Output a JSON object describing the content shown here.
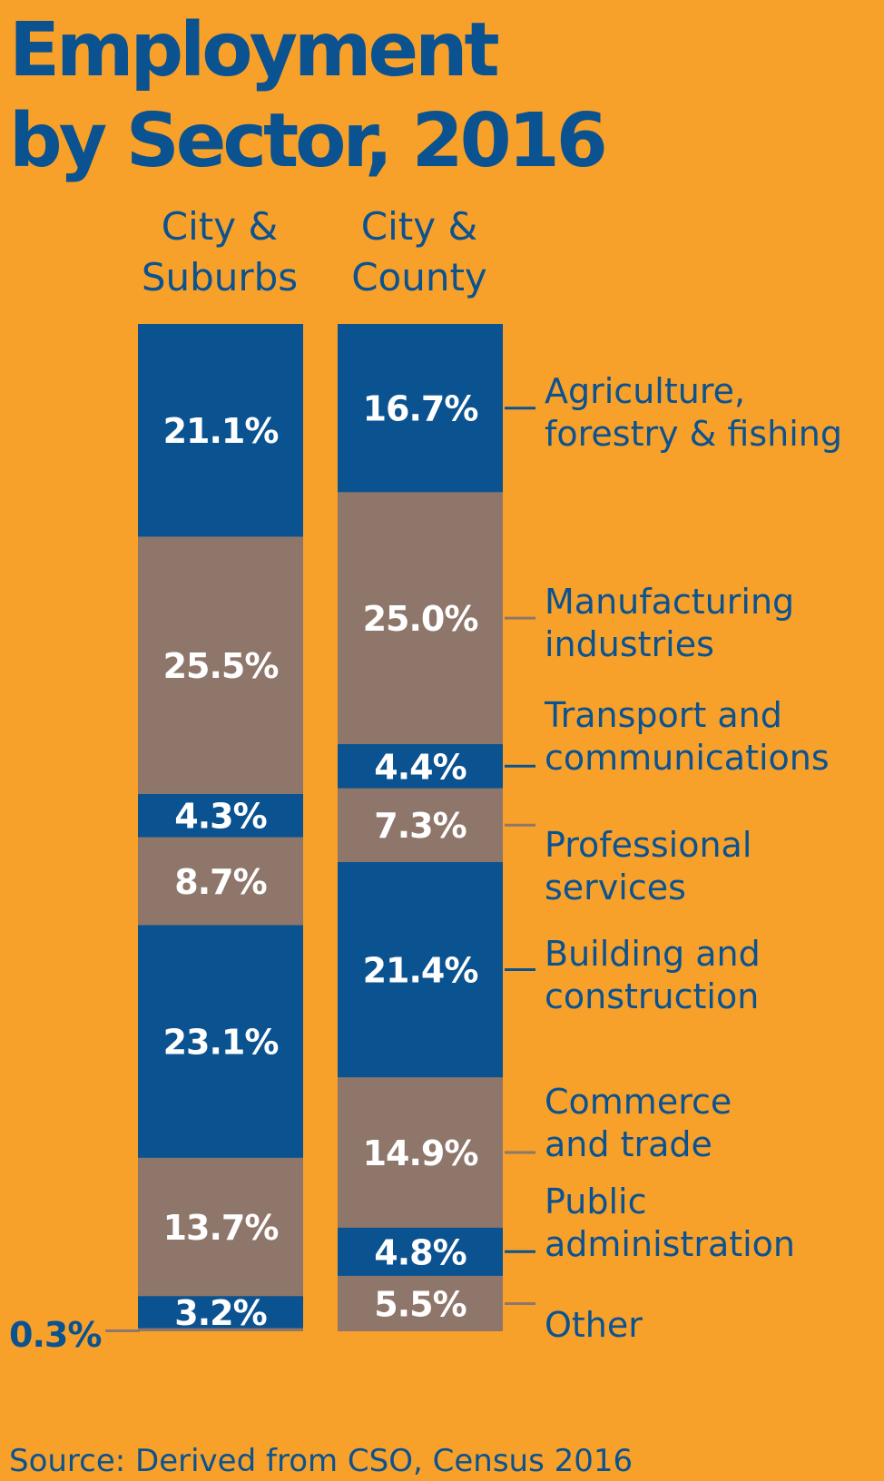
{
  "title_lines": [
    "Employment",
    "by Sector, 2016"
  ],
  "source": "Source: Derived from CSO, Census 2016",
  "colors": {
    "background": "#f7a02a",
    "blue": "#0b5290",
    "taupe": "#8f766b",
    "text": "#0b5290",
    "label": "#ffffff",
    "connector_blue": "#0b5290",
    "connector_taupe": "#8f766b"
  },
  "chart_data": {
    "type": "bar",
    "stacked": true,
    "unit": "%",
    "series": [
      {
        "name_lines": [
          "City &",
          "Suburbs"
        ],
        "values": [
          0.3,
          3.2,
          13.7,
          23.1,
          8.7,
          4.3,
          25.5,
          21.1
        ],
        "labels": [
          "0.3%",
          "3.2%",
          "13.7%",
          "23.1%",
          "8.7%",
          "4.3%",
          "25.5%",
          "21.1%"
        ]
      },
      {
        "name_lines": [
          "City &",
          "County"
        ],
        "values": [
          5.5,
          4.8,
          14.9,
          21.4,
          7.3,
          4.4,
          25.0,
          16.7
        ],
        "labels": [
          "5.5%",
          "4.8%",
          "14.9%",
          "21.4%",
          "7.3%",
          "4.4%",
          "25.0%",
          "16.7%"
        ]
      }
    ],
    "categories": [
      {
        "lines": [
          "Other"
        ],
        "color": "taupe"
      },
      {
        "lines": [
          "Public",
          "administration"
        ],
        "color": "blue"
      },
      {
        "lines": [
          "Commerce",
          "and trade"
        ],
        "color": "taupe"
      },
      {
        "lines": [
          "Building and",
          "construction"
        ],
        "color": "blue"
      },
      {
        "lines": [
          "Professional",
          "services"
        ],
        "color": "taupe"
      },
      {
        "lines": [
          "Transport and",
          "communications"
        ],
        "color": "blue"
      },
      {
        "lines": [
          "Manufacturing",
          "industries"
        ],
        "color": "taupe"
      },
      {
        "lines": [
          "Agriculture,",
          "forestry & fishing"
        ],
        "color": "blue"
      }
    ]
  }
}
